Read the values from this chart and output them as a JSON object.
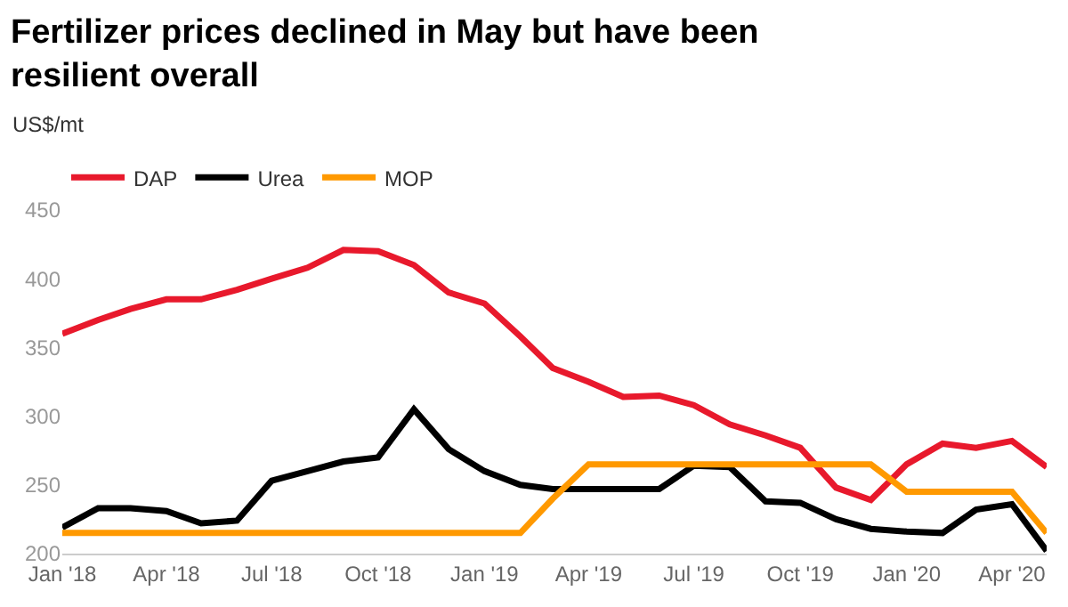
{
  "chart_data": {
    "type": "line",
    "title": "Fertilizer prices declined in May but have been resilient overall",
    "ylabel": "US$/mt",
    "x": [
      "2018-01",
      "2018-02",
      "2018-03",
      "2018-04",
      "2018-05",
      "2018-06",
      "2018-07",
      "2018-08",
      "2018-09",
      "2018-10",
      "2018-11",
      "2018-12",
      "2019-01",
      "2019-02",
      "2019-03",
      "2019-04",
      "2019-05",
      "2019-06",
      "2019-07",
      "2019-08",
      "2019-09",
      "2019-10",
      "2019-11",
      "2019-12",
      "2020-01",
      "2020-02",
      "2020-03",
      "2020-04",
      "2020-05"
    ],
    "series": [
      {
        "name": "DAP",
        "color": "#e8192c",
        "values": [
          360,
          370,
          378,
          385,
          385,
          392,
          400,
          408,
          421,
          420,
          410,
          390,
          382,
          358,
          335,
          325,
          314,
          315,
          308,
          294,
          286,
          277,
          248,
          239,
          265,
          280,
          277,
          282,
          263
        ]
      },
      {
        "name": "Urea",
        "color": "#000000",
        "values": [
          219,
          233,
          233,
          231,
          222,
          224,
          253,
          260,
          267,
          270,
          305,
          276,
          260,
          250,
          247,
          247,
          247,
          247,
          264,
          263,
          238,
          237,
          225,
          218,
          216,
          215,
          232,
          236,
          202
        ]
      },
      {
        "name": "MOP",
        "color": "#ff9900",
        "values": [
          215,
          215,
          215,
          215,
          215,
          215,
          215,
          215,
          215,
          215,
          215,
          215,
          215,
          215,
          240,
          265,
          265,
          265,
          265,
          265,
          265,
          265,
          265,
          265,
          245,
          245,
          245,
          245,
          215
        ]
      }
    ],
    "xticks": [
      {
        "value": "2018-01",
        "label": "Jan '18"
      },
      {
        "value": "2018-04",
        "label": "Apr '18"
      },
      {
        "value": "2018-07",
        "label": "Jul '18"
      },
      {
        "value": "2018-10",
        "label": "Oct '18"
      },
      {
        "value": "2019-01",
        "label": "Jan '19"
      },
      {
        "value": "2019-04",
        "label": "Apr '19"
      },
      {
        "value": "2019-07",
        "label": "Jul '19"
      },
      {
        "value": "2019-10",
        "label": "Oct '19"
      },
      {
        "value": "2020-01",
        "label": "Jan '20"
      },
      {
        "value": "2020-04",
        "label": "Apr '20"
      }
    ],
    "xlim": [
      "2018-01",
      "2020-05"
    ],
    "ylim": [
      200,
      450
    ],
    "yticks": [
      200,
      250,
      300,
      350,
      400,
      450
    ],
    "legend": "top left",
    "grid": false,
    "marker": "none",
    "line_style": "solid"
  }
}
